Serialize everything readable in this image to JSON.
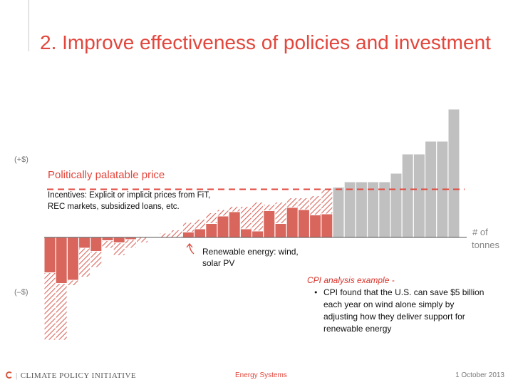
{
  "slide": {
    "title": "2. Improve effectiveness of policies and investment",
    "footer_left": "CLIMATE POLICY INITIATIVE",
    "footer_center": "Energy Systems",
    "footer_right": "1 October 2013"
  },
  "colors": {
    "accent": "#e2463c",
    "solid_bar": "#d9665d",
    "hatch_bar": "#d9665d",
    "gray_bar": "#c0c0c0",
    "axis": "#555555"
  },
  "chart_data": {
    "type": "bar",
    "title": "",
    "xlabel": "# of tonnes",
    "ylabel_top": "(+$)",
    "ylabel_bottom": "(–$)",
    "ylim": [
      -10,
      14
    ],
    "reference_line": {
      "value": 4.5,
      "label": "Politically palatable price"
    },
    "incentives_label_lines": [
      "Incentives: Explicit or implicit prices from FiT,",
      "REC markets, subsidized loans, etc."
    ],
    "renewable_label_lines": [
      "Renewable energy: wind,",
      "solar PV"
    ],
    "cpi_example": {
      "heading": "CPI analysis example -",
      "bullet_lines": [
        "CPI found that the U.S. can save $5 billion",
        "each year on wind alone simply by",
        "adjusting how they deliver support for",
        "renewable energy"
      ]
    },
    "series": [
      {
        "name": "",
        "style": "solid",
        "values": [
          -3.3,
          -4.3,
          -4.0,
          -1.0,
          -1.3,
          -0.3,
          -0.5,
          -0.2,
          0,
          0,
          0,
          0,
          0.5,
          0.8,
          1.3,
          2.0,
          2.4,
          0.8,
          0.6,
          2.5,
          1.3,
          2.8,
          2.6,
          2.1,
          2.2,
          0.8,
          0,
          0,
          0,
          0,
          0,
          0,
          0,
          0,
          0,
          0
        ],
        "colors_used": "red"
      },
      {
        "name": "",
        "style": "hatched",
        "values": [
          -9.6,
          -9.6,
          -4.5,
          -3.7,
          -2.8,
          -1.0,
          -1.7,
          -1.0,
          -0.5,
          0,
          0.4,
          0.7,
          1.4,
          1.7,
          2.3,
          2.6,
          2.9,
          2.9,
          3.3,
          3.1,
          3.3,
          3.7,
          3.7,
          3.9,
          4.5,
          0,
          0,
          0,
          0,
          0,
          0,
          0,
          0,
          0,
          0,
          0
        ]
      },
      {
        "name": "",
        "style": "gray",
        "values": [
          0,
          0,
          0,
          0,
          0,
          0,
          0,
          0,
          0,
          0,
          0,
          0,
          0,
          0,
          0,
          0,
          0,
          0,
          0,
          0,
          0,
          0,
          0,
          0,
          0,
          4.7,
          5.2,
          5.2,
          5.2,
          5.2,
          6.0,
          7.8,
          7.8,
          9.0,
          9.0,
          12.0
        ]
      }
    ],
    "last_bar_extra": 12.0
  }
}
